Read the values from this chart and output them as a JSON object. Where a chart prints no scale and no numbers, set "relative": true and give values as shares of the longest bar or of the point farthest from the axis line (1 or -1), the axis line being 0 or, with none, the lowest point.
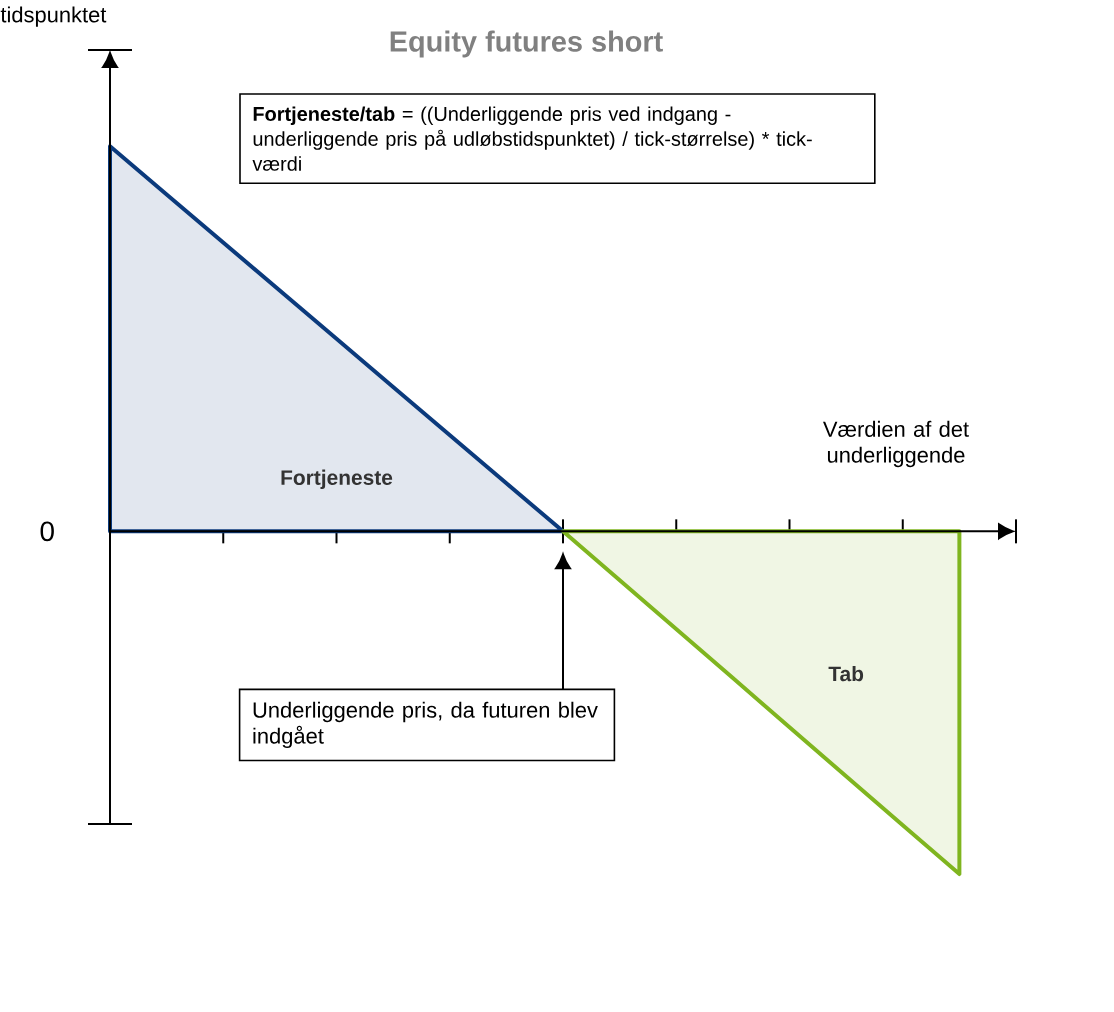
{
  "chart_data": {
    "type": "area",
    "title": "Equity futures short",
    "xlabel": "Værdien af det underliggende",
    "relative": true,
    "categories": [
      null,
      null,
      null,
      null,
      null,
      null,
      null,
      null,
      null,
      null,
      null,
      null,
      null,
      null,
      null,
      null,
      null
    ],
    "series": [
      {
        "name": "Fortjeneste",
        "color": "#0b3a7c",
        "values": [
          1,
          0.875,
          0.75,
          0.625,
          0.5,
          0.375,
          0.25,
          0.125,
          0,
          null,
          null,
          null,
          null,
          null,
          null,
          null,
          null
        ]
      },
      {
        "name": "Tab",
        "color": "#7fb51f",
        "values": [
          null,
          null,
          null,
          null,
          null,
          null,
          null,
          null,
          0,
          -0.127,
          -0.254,
          -0.381,
          -0.509,
          -0.636,
          -0.763,
          -0.89,
          null
        ]
      }
    ],
    "annotations": [
      "tidspunktet",
      "0",
      "**Fortjeneste/tab**  = ((Underliggende pris ved indgang - underliggende pris på udløbstidspunktet) / tick-størrelse) * tick-værdi",
      "Underliggende pris, da futuren blev indgået"
    ]
  }
}
